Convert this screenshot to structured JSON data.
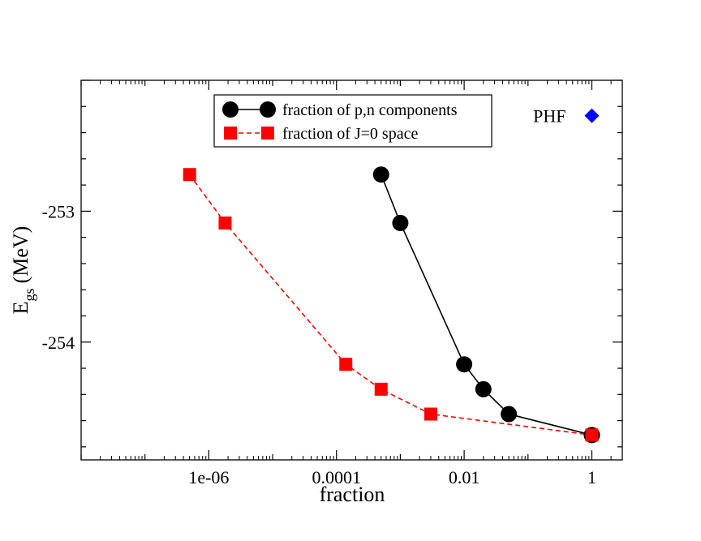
{
  "chart_data": {
    "type": "line",
    "title": "",
    "xlabel": "fraction",
    "ylabel_main": "E",
    "ylabel_sub": "gs",
    "ylabel_unit": "(MeV)",
    "x_scale": "log",
    "xlim": [
      1e-08,
      3
    ],
    "ylim": [
      -254.9,
      -252.0
    ],
    "x_ticks": [
      {
        "value": 1e-06,
        "label": "1e-06"
      },
      {
        "value": 0.0001,
        "label": "0.0001"
      },
      {
        "value": 0.01,
        "label": "0.01"
      },
      {
        "value": 1,
        "label": "1"
      }
    ],
    "y_ticks": [
      {
        "value": -253,
        "label": "-253"
      },
      {
        "value": -254,
        "label": "-254"
      }
    ],
    "series": [
      {
        "name": "fraction of p,n components",
        "marker": "circle",
        "line": "solid",
        "color": "#000000",
        "x": [
          0.0005,
          0.001,
          0.01,
          0.02,
          0.05,
          1.0
        ],
        "y": [
          -252.72,
          -253.09,
          -254.17,
          -254.36,
          -254.55,
          -254.71
        ]
      },
      {
        "name": "fraction of J=0 space",
        "marker": "square",
        "line": "dashed",
        "color": "#ff0000",
        "x": [
          5e-07,
          1.8e-06,
          0.00014,
          0.0005,
          0.003,
          1.0
        ],
        "y": [
          -252.72,
          -253.09,
          -254.17,
          -254.36,
          -254.55,
          -254.71
        ]
      }
    ],
    "annotations": [
      {
        "text": "PHF",
        "x": 1.0,
        "y": -252.27,
        "marker": "diamond",
        "color": "#0000ff"
      }
    ],
    "legend_placement": "top-center"
  }
}
